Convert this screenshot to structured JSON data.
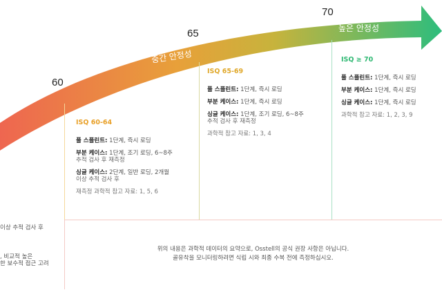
{
  "scale": {
    "ticks": [
      {
        "value": "60"
      },
      {
        "value": "65"
      },
      {
        "value": "70"
      }
    ]
  },
  "bands": {
    "medium": "중간 안정성",
    "high": "높은 안정성"
  },
  "colors": {
    "arrow_start": "#ee6650",
    "arrow_mid": "#e8a03a",
    "arrow_mid2": "#c7b33c",
    "arrow_end": "#2dbd7d",
    "col1_title": "#e8a028",
    "col2_title": "#e0a82a",
    "col3_title": "#2eb872",
    "divider1": "#f5d79a",
    "divider2": "#d9d9a0",
    "divider3": "#a8e0c4"
  },
  "columns": [
    {
      "title": "ISQ 60-64",
      "items": [
        {
          "label": "풀 스플린트:",
          "text": "1단계, 즉시 로딩",
          "sub": ""
        },
        {
          "label": "부분 케이스:",
          "text": "1단계, 조기 로딩, 6~8주",
          "sub": "추적 검사 후 재측정"
        },
        {
          "label": "싱글 케이스:",
          "text": "2단계, 일반 로딩, 2개월",
          "sub": "이상 추적 검사 후"
        }
      ],
      "ref": "재측정 과학적 참고 자료: 1, 5, 6"
    },
    {
      "title": "ISQ 65-69",
      "items": [
        {
          "label": "풀 스플린트:",
          "text": "1단계, 즉시 로딩",
          "sub": ""
        },
        {
          "label": "부분 케이스:",
          "text": "1단계, 즉시 로딩",
          "sub": ""
        },
        {
          "label": "싱글 케이스:",
          "text": "1단계, 조기 로딩, 6~8주",
          "sub": "추적 검사 후 재측정"
        }
      ],
      "ref": "과학적 참고 자료: 1, 3, 4"
    },
    {
      "title": "ISQ ≥ 70",
      "items": [
        {
          "label": "풀 스플린트:",
          "text": "1단계, 즉시 로딩",
          "sub": ""
        },
        {
          "label": "부분 케이스:",
          "text": "1단계, 즉시 로딩",
          "sub": ""
        },
        {
          "label": "싱글 케이스:",
          "text": "1단계, 즉시 로딩",
          "sub": ""
        }
      ],
      "ref": "과학적 참고 자료: 1, 2, 3, 9"
    }
  ],
  "left_fragments": [
    "이상 추적 검사 후",
    ", 비교적 높은",
    "한 보수적 접근 고려"
  ],
  "notice": {
    "line1": "위의 내용은 과학적 데이터의 요약으로, Osstell의 공식 권장 사항은 아닙니다.",
    "line2": "골유착을 모니터링하려면 식립 시와 최종 수복 전에 측정하십시오."
  }
}
